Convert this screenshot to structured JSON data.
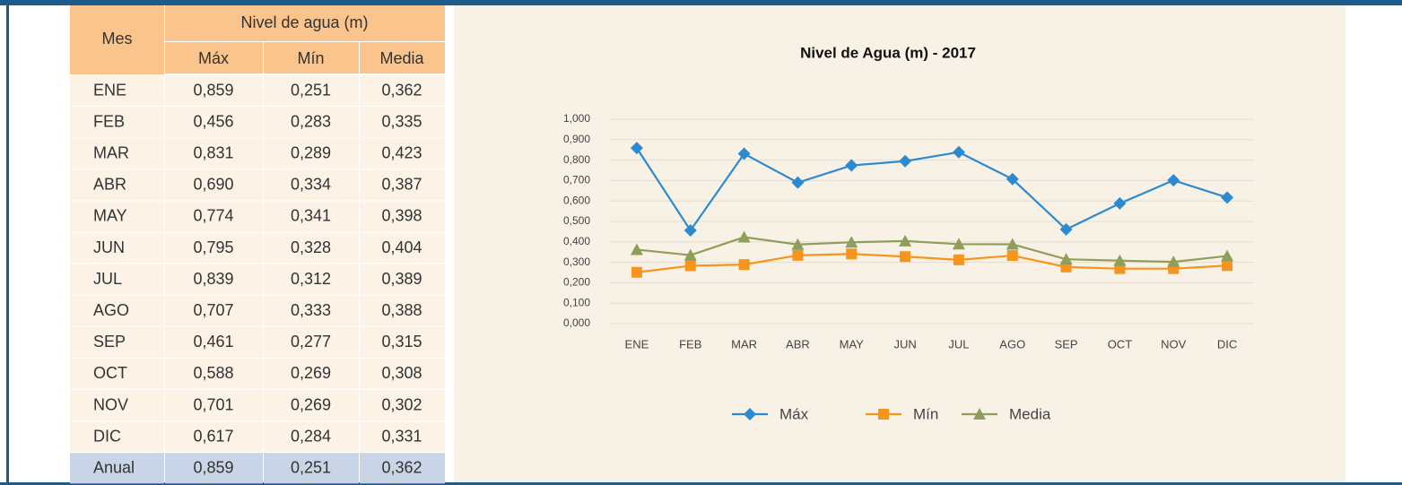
{
  "table": {
    "header": [
      "Mes",
      "Nivel de agua (m)"
    ],
    "subheader": [
      "Máx",
      "Mín",
      "Media"
    ],
    "rows": [
      [
        "ENE",
        "0,859",
        "0,251",
        "0,362"
      ],
      [
        "FEB",
        "0,456",
        "0,283",
        "0,335"
      ],
      [
        "MAR",
        "0,831",
        "0,289",
        "0,423"
      ],
      [
        "ABR",
        "0,690",
        "0,334",
        "0,387"
      ],
      [
        "MAY",
        "0,774",
        "0,341",
        "0,398"
      ],
      [
        "JUN",
        "0,795",
        "0,328",
        "0,404"
      ],
      [
        "JUL",
        "0,839",
        "0,312",
        "0,389"
      ],
      [
        "AGO",
        "0,707",
        "0,333",
        "0,388"
      ],
      [
        "SEP",
        "0,461",
        "0,277",
        "0,315"
      ],
      [
        "OCT",
        "0,588",
        "0,269",
        "0,308"
      ],
      [
        "NOV",
        "0,701",
        "0,269",
        "0,302"
      ],
      [
        "DIC",
        "0,617",
        "0,284",
        "0,331"
      ],
      [
        "Anual",
        "0,859",
        "0,251",
        "0,362"
      ]
    ]
  },
  "chart_data": {
    "type": "line",
    "title": "Nivel de Agua (m) - 2017",
    "categories": [
      "ENE",
      "FEB",
      "MAR",
      "ABR",
      "MAY",
      "JUN",
      "JUL",
      "AGO",
      "SEP",
      "OCT",
      "NOV",
      "DIC"
    ],
    "series": [
      {
        "name": "Máx",
        "color": "#2b8ad0",
        "marker": "diamond",
        "values": [
          0.859,
          0.456,
          0.831,
          0.69,
          0.774,
          0.795,
          0.839,
          0.707,
          0.461,
          0.588,
          0.701,
          0.617
        ]
      },
      {
        "name": "Mín",
        "color": "#f7941d",
        "marker": "square",
        "values": [
          0.251,
          0.283,
          0.289,
          0.334,
          0.341,
          0.328,
          0.312,
          0.333,
          0.277,
          0.269,
          0.269,
          0.284
        ]
      },
      {
        "name": "Media",
        "color": "#8f9f5a",
        "marker": "triangle",
        "values": [
          0.362,
          0.335,
          0.423,
          0.387,
          0.398,
          0.404,
          0.389,
          0.388,
          0.315,
          0.308,
          0.302,
          0.331
        ]
      }
    ],
    "ylim": [
      0,
      1
    ],
    "yticks": [
      {
        "value": 0,
        "label": "0,000"
      },
      {
        "value": 0.1,
        "label": "0,100"
      },
      {
        "value": 0.2,
        "label": "0,200"
      },
      {
        "value": 0.3,
        "label": "0,300"
      },
      {
        "value": 0.4,
        "label": "0,400"
      },
      {
        "value": 0.5,
        "label": "0,500"
      },
      {
        "value": 0.6,
        "label": "0,600"
      },
      {
        "value": 0.7,
        "label": "0,700"
      },
      {
        "value": 0.8,
        "label": "0,800"
      },
      {
        "value": 0.9,
        "label": "0,900"
      },
      {
        "value": 1,
        "label": "1,000"
      }
    ],
    "grid": true,
    "legend": "bottom"
  }
}
